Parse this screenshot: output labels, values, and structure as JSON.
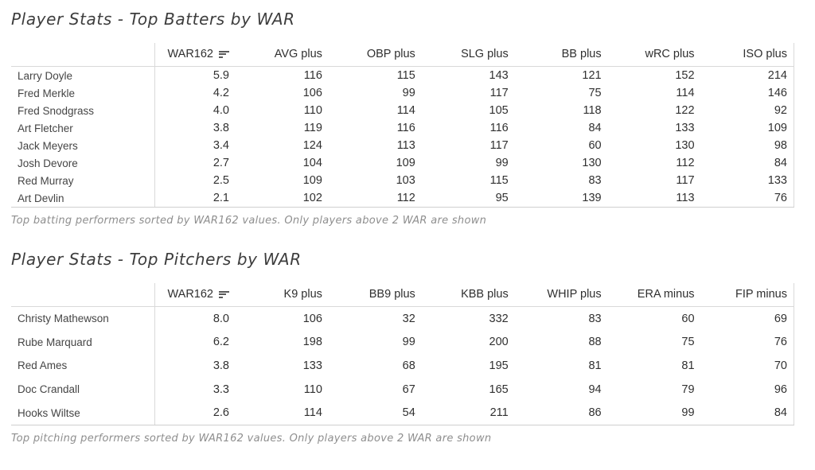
{
  "colors": {
    "background": "#ffffff",
    "title_text": "#3d3d3d",
    "caption_text": "#8e8e8e",
    "cell_text": "#303030",
    "border": "#d9d9d9",
    "sort_icon": "#5a5a5a"
  },
  "batters": {
    "title": "Player Stats - Top Batters by WAR",
    "caption": "Top batting performers sorted by WAR162 values. Only players above 2 WAR are shown",
    "sorted_column": "WAR162",
    "sort_direction": "descending",
    "columns": [
      "WAR162",
      "AVG plus",
      "OBP plus",
      "SLG plus",
      "BB plus",
      "wRC plus",
      "ISO plus"
    ],
    "rows": [
      {
        "name": "Larry Doyle",
        "values": [
          "5.9",
          "116",
          "115",
          "143",
          "121",
          "152",
          "214"
        ]
      },
      {
        "name": "Fred Merkle",
        "values": [
          "4.2",
          "106",
          "99",
          "117",
          "75",
          "114",
          "146"
        ]
      },
      {
        "name": "Fred Snodgrass",
        "values": [
          "4.0",
          "110",
          "114",
          "105",
          "118",
          "122",
          "92"
        ]
      },
      {
        "name": "Art Fletcher",
        "values": [
          "3.8",
          "119",
          "116",
          "116",
          "84",
          "133",
          "109"
        ]
      },
      {
        "name": "Jack Meyers",
        "values": [
          "3.4",
          "124",
          "113",
          "117",
          "60",
          "130",
          "98"
        ]
      },
      {
        "name": "Josh Devore",
        "values": [
          "2.7",
          "104",
          "109",
          "99",
          "130",
          "112",
          "84"
        ]
      },
      {
        "name": "Red Murray",
        "values": [
          "2.5",
          "109",
          "103",
          "115",
          "83",
          "117",
          "133"
        ]
      },
      {
        "name": "Art Devlin",
        "values": [
          "2.1",
          "102",
          "112",
          "95",
          "139",
          "113",
          "76"
        ]
      }
    ]
  },
  "pitchers": {
    "title": "Player Stats - Top Pitchers by WAR",
    "caption": "Top pitching performers sorted by WAR162 values. Only players above 2 WAR are shown",
    "sorted_column": "WAR162",
    "sort_direction": "descending",
    "columns": [
      "WAR162",
      "K9 plus",
      "BB9 plus",
      "KBB plus",
      "WHIP plus",
      "ERA minus",
      "FIP minus"
    ],
    "rows": [
      {
        "name": "Christy Mathewson",
        "values": [
          "8.0",
          "106",
          "32",
          "332",
          "83",
          "60",
          "69"
        ]
      },
      {
        "name": "Rube Marquard",
        "values": [
          "6.2",
          "198",
          "99",
          "200",
          "88",
          "75",
          "76"
        ]
      },
      {
        "name": "Red Ames",
        "values": [
          "3.8",
          "133",
          "68",
          "195",
          "81",
          "81",
          "70"
        ]
      },
      {
        "name": "Doc Crandall",
        "values": [
          "3.3",
          "110",
          "67",
          "165",
          "94",
          "79",
          "96"
        ]
      },
      {
        "name": "Hooks Wiltse",
        "values": [
          "2.6",
          "114",
          "54",
          "211",
          "86",
          "99",
          "84"
        ]
      }
    ]
  }
}
